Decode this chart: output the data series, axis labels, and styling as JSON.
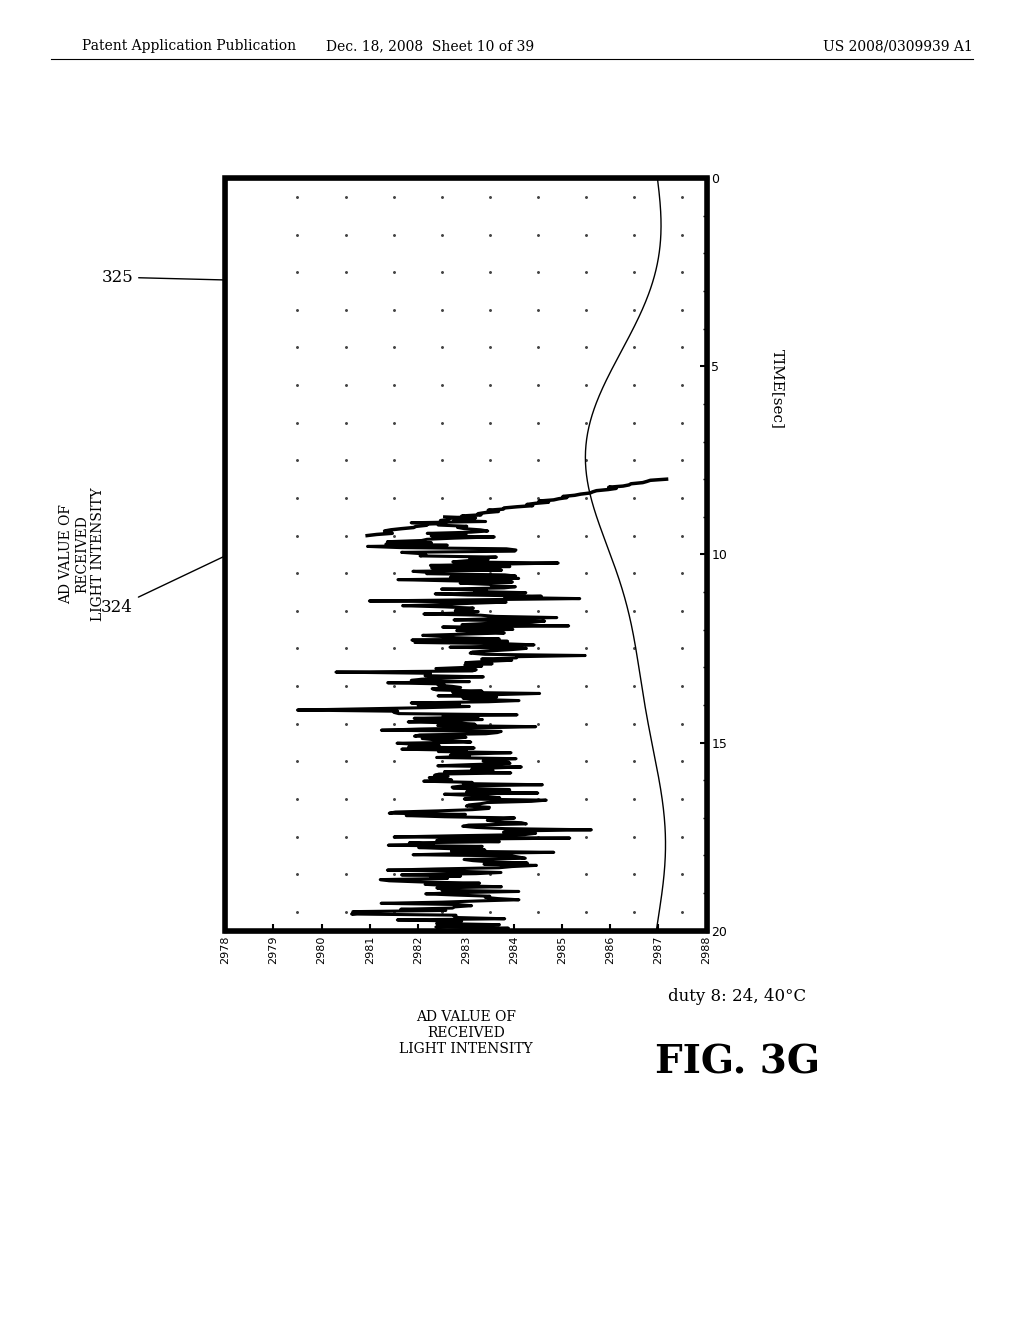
{
  "header_left": "Patent Application Publication",
  "header_mid": "Dec. 18, 2008  Sheet 10 of 39",
  "header_right": "US 2008/0309939 A1",
  "fig_label": "FIG. 3G",
  "duty_label": "duty 8: 24, 40°C",
  "ylabel": "AD VALUE OF\nRECEIVED\nLIGHT INTENSITY",
  "xlabel": "TIME[sec]",
  "yticks": [
    2978,
    2979,
    2980,
    2981,
    2982,
    2983,
    2984,
    2985,
    2986,
    2987,
    2988
  ],
  "xticks": [
    0,
    5,
    10,
    15,
    20
  ],
  "ylim": [
    2978,
    2988
  ],
  "xlim": [
    0,
    20
  ],
  "label_325": "325",
  "label_324": "324",
  "bg_color": "#ffffff",
  "line_color": "#000000",
  "dot_color": "#333333"
}
